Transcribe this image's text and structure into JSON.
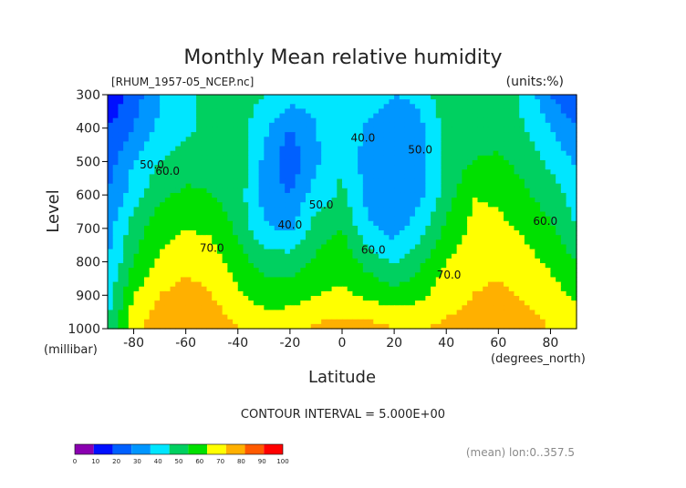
{
  "chart_data": {
    "type": "heatmap",
    "title": "Monthly Mean relative humidity",
    "source_label": "[RHUM_1957-05_NCEP.nc]",
    "units_label": "(units:%)",
    "xlabel": "Latitude",
    "xunit": "(degrees_north)",
    "ylabel": "Level",
    "yunit": "(millibar)",
    "xlim": [
      -90,
      90
    ],
    "ylim": [
      1000,
      300
    ],
    "x_ticks": [
      -80,
      -60,
      -40,
      -20,
      0,
      20,
      40,
      60,
      80
    ],
    "y_ticks": [
      300,
      400,
      500,
      600,
      700,
      800,
      900,
      1000
    ],
    "contour_interval_text": "CONTOUR INTERVAL = 5.000E+00",
    "mean_note": "(mean) lon:0..357.5",
    "colorbar": {
      "levels": [
        0,
        10,
        20,
        30,
        40,
        50,
        60,
        70,
        80,
        90,
        100
      ],
      "colors": [
        "#8a00b0",
        "#0010ff",
        "#0060ff",
        "#0096ff",
        "#00e6ff",
        "#00d060",
        "#00e000",
        "#ffff00",
        "#ffb000",
        "#ff5a00",
        "#ff0000"
      ]
    },
    "contour_labels": [
      {
        "text": "50.0",
        "x": -73,
        "y": 520
      },
      {
        "text": "60.0",
        "x": -67,
        "y": 540
      },
      {
        "text": "40.0",
        "x": -20,
        "y": 700
      },
      {
        "text": "50.0",
        "x": -8,
        "y": 640
      },
      {
        "text": "40.0",
        "x": 8,
        "y": 440
      },
      {
        "text": "50.0",
        "x": 30,
        "y": 475
      },
      {
        "text": "60.0",
        "x": 12,
        "y": 775
      },
      {
        "text": "70.0",
        "x": -50,
        "y": 770
      },
      {
        "text": "70.0",
        "x": 41,
        "y": 850
      },
      {
        "text": "60.0",
        "x": 78,
        "y": 690
      }
    ],
    "field": {
      "lat": [
        -90,
        -80,
        -70,
        -60,
        -50,
        -40,
        -30,
        -20,
        -10,
        0,
        10,
        20,
        30,
        40,
        50,
        60,
        70,
        80,
        90
      ],
      "levels": [
        300,
        400,
        500,
        600,
        700,
        800,
        900,
        1000
      ],
      "rh": [
        [
          10,
          25,
          40,
          48,
          52,
          55,
          50,
          45,
          42,
          46,
          48,
          40,
          42,
          60,
          58,
          55,
          48,
          30,
          20
        ],
        [
          20,
          30,
          42,
          48,
          53,
          55,
          43,
          30,
          40,
          47,
          38,
          32,
          38,
          52,
          56,
          55,
          50,
          40,
          30
        ],
        [
          25,
          40,
          50,
          55,
          58,
          58,
          38,
          22,
          38,
          50,
          35,
          30,
          36,
          52,
          60,
          62,
          56,
          48,
          38
        ],
        [
          30,
          45,
          58,
          62,
          60,
          55,
          36,
          30,
          45,
          52,
          36,
          32,
          38,
          55,
          70,
          68,
          62,
          55,
          45
        ],
        [
          35,
          55,
          66,
          70,
          68,
          58,
          42,
          38,
          55,
          60,
          42,
          36,
          45,
          62,
          72,
          73,
          68,
          62,
          50
        ],
        [
          40,
          60,
          72,
          77,
          75,
          65,
          55,
          55,
          62,
          66,
          56,
          48,
          58,
          70,
          76,
          78,
          74,
          68,
          60
        ],
        [
          45,
          70,
          80,
          84,
          80,
          72,
          66,
          66,
          70,
          72,
          68,
          64,
          68,
          76,
          80,
          82,
          79,
          74,
          68
        ],
        [
          50,
          78,
          85,
          88,
          86,
          80,
          76,
          77,
          82,
          84,
          84,
          80,
          80,
          82,
          84,
          86,
          84,
          80,
          78
        ]
      ]
    }
  }
}
